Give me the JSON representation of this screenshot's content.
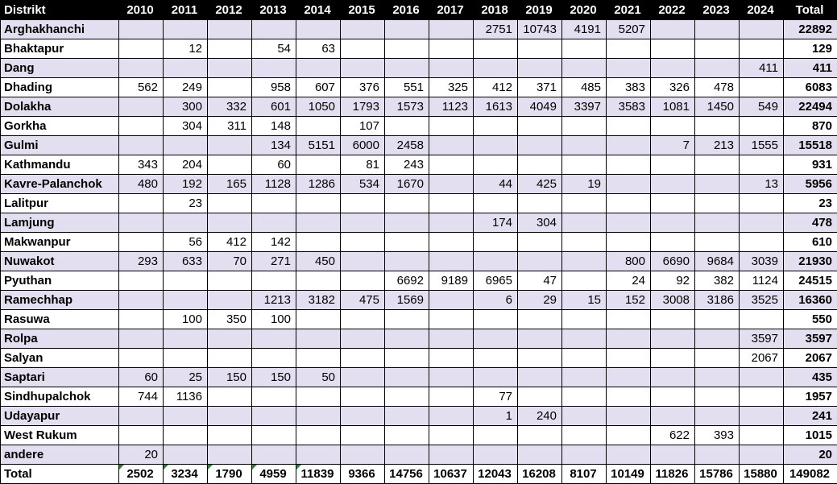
{
  "table": {
    "columns": [
      "Distrikt",
      "2010",
      "2011",
      "2012",
      "2013",
      "2014",
      "2015",
      "2016",
      "2017",
      "2018",
      "2019",
      "2020",
      "2021",
      "2022",
      "2023",
      "2024",
      "Total"
    ],
    "rows": [
      [
        "Arghakhanchi",
        "",
        "",
        "",
        "",
        "",
        "",
        "",
        "",
        "2751",
        "10743",
        "4191",
        "5207",
        "",
        "",
        "",
        "22892"
      ],
      [
        "Bhaktapur",
        "",
        "12",
        "",
        "54",
        "63",
        "",
        "",
        "",
        "",
        "",
        "",
        "",
        "",
        "",
        "",
        "129"
      ],
      [
        "Dang",
        "",
        "",
        "",
        "",
        "",
        "",
        "",
        "",
        "",
        "",
        "",
        "",
        "",
        "",
        "411",
        "411"
      ],
      [
        "Dhading",
        "562",
        "249",
        "",
        "958",
        "607",
        "376",
        "551",
        "325",
        "412",
        "371",
        "485",
        "383",
        "326",
        "478",
        "",
        "6083"
      ],
      [
        "Dolakha",
        "",
        "300",
        "332",
        "601",
        "1050",
        "1793",
        "1573",
        "1123",
        "1613",
        "4049",
        "3397",
        "3583",
        "1081",
        "1450",
        "549",
        "22494"
      ],
      [
        "Gorkha",
        "",
        "304",
        "311",
        "148",
        "",
        "107",
        "",
        "",
        "",
        "",
        "",
        "",
        "",
        "",
        "",
        "870"
      ],
      [
        "Gulmi",
        "",
        "",
        "",
        "134",
        "5151",
        "6000",
        "2458",
        "",
        "",
        "",
        "",
        "",
        "7",
        "213",
        "1555",
        "15518"
      ],
      [
        "Kathmandu",
        "343",
        "204",
        "",
        "60",
        "",
        "81",
        "243",
        "",
        "",
        "",
        "",
        "",
        "",
        "",
        "",
        "931"
      ],
      [
        "Kavre-Palanchok",
        "480",
        "192",
        "165",
        "1128",
        "1286",
        "534",
        "1670",
        "",
        "44",
        "425",
        "19",
        "",
        "",
        "",
        "13",
        "5956"
      ],
      [
        "Lalitpur",
        "",
        "23",
        "",
        "",
        "",
        "",
        "",
        "",
        "",
        "",
        "",
        "",
        "",
        "",
        "",
        "23"
      ],
      [
        "Lamjung",
        "",
        "",
        "",
        "",
        "",
        "",
        "",
        "",
        "174",
        "304",
        "",
        "",
        "",
        "",
        "",
        "478"
      ],
      [
        "Makwanpur",
        "",
        "56",
        "412",
        "142",
        "",
        "",
        "",
        "",
        "",
        "",
        "",
        "",
        "",
        "",
        "",
        "610"
      ],
      [
        "Nuwakot",
        "293",
        "633",
        "70",
        "271",
        "450",
        "",
        "",
        "",
        "",
        "",
        "",
        "800",
        "6690",
        "9684",
        "3039",
        "21930"
      ],
      [
        "Pyuthan",
        "",
        "",
        "",
        "",
        "",
        "",
        "6692",
        "9189",
        "6965",
        "47",
        "",
        "24",
        "92",
        "382",
        "1124",
        "24515"
      ],
      [
        "Ramechhap",
        "",
        "",
        "",
        "1213",
        "3182",
        "475",
        "1569",
        "",
        "6",
        "29",
        "15",
        "152",
        "3008",
        "3186",
        "3525",
        "16360"
      ],
      [
        "Rasuwa",
        "",
        "100",
        "350",
        "100",
        "",
        "",
        "",
        "",
        "",
        "",
        "",
        "",
        "",
        "",
        "",
        "550"
      ],
      [
        "Rolpa",
        "",
        "",
        "",
        "",
        "",
        "",
        "",
        "",
        "",
        "",
        "",
        "",
        "",
        "",
        "3597",
        "3597"
      ],
      [
        "Salyan",
        "",
        "",
        "",
        "",
        "",
        "",
        "",
        "",
        "",
        "",
        "",
        "",
        "",
        "",
        "2067",
        "2067"
      ],
      [
        "Saptari",
        "60",
        "25",
        "150",
        "150",
        "50",
        "",
        "",
        "",
        "",
        "",
        "",
        "",
        "",
        "",
        "",
        "435"
      ],
      [
        "Sindhupalchok",
        "744",
        "1136",
        "",
        "",
        "",
        "",
        "",
        "",
        "77",
        "",
        "",
        "",
        "",
        "",
        "",
        "1957"
      ],
      [
        "Udayapur",
        "",
        "",
        "",
        "",
        "",
        "",
        "",
        "",
        "1",
        "240",
        "",
        "",
        "",
        "",
        "",
        "241"
      ],
      [
        "West Rukum",
        "",
        "",
        "",
        "",
        "",
        "",
        "",
        "",
        "",
        "",
        "",
        "",
        "622",
        "393",
        "",
        "1015"
      ],
      [
        "andere",
        "20",
        "",
        "",
        "",
        "",
        "",
        "",
        "",
        "",
        "",
        "",
        "",
        "",
        "",
        "",
        "20"
      ]
    ],
    "totals": [
      "Total",
      "2502",
      "3234",
      "1790",
      "4959",
      "11839",
      "9366",
      "14756",
      "10637",
      "12043",
      "16208",
      "8107",
      "10149",
      "11826",
      "15786",
      "15880",
      "149082"
    ]
  }
}
